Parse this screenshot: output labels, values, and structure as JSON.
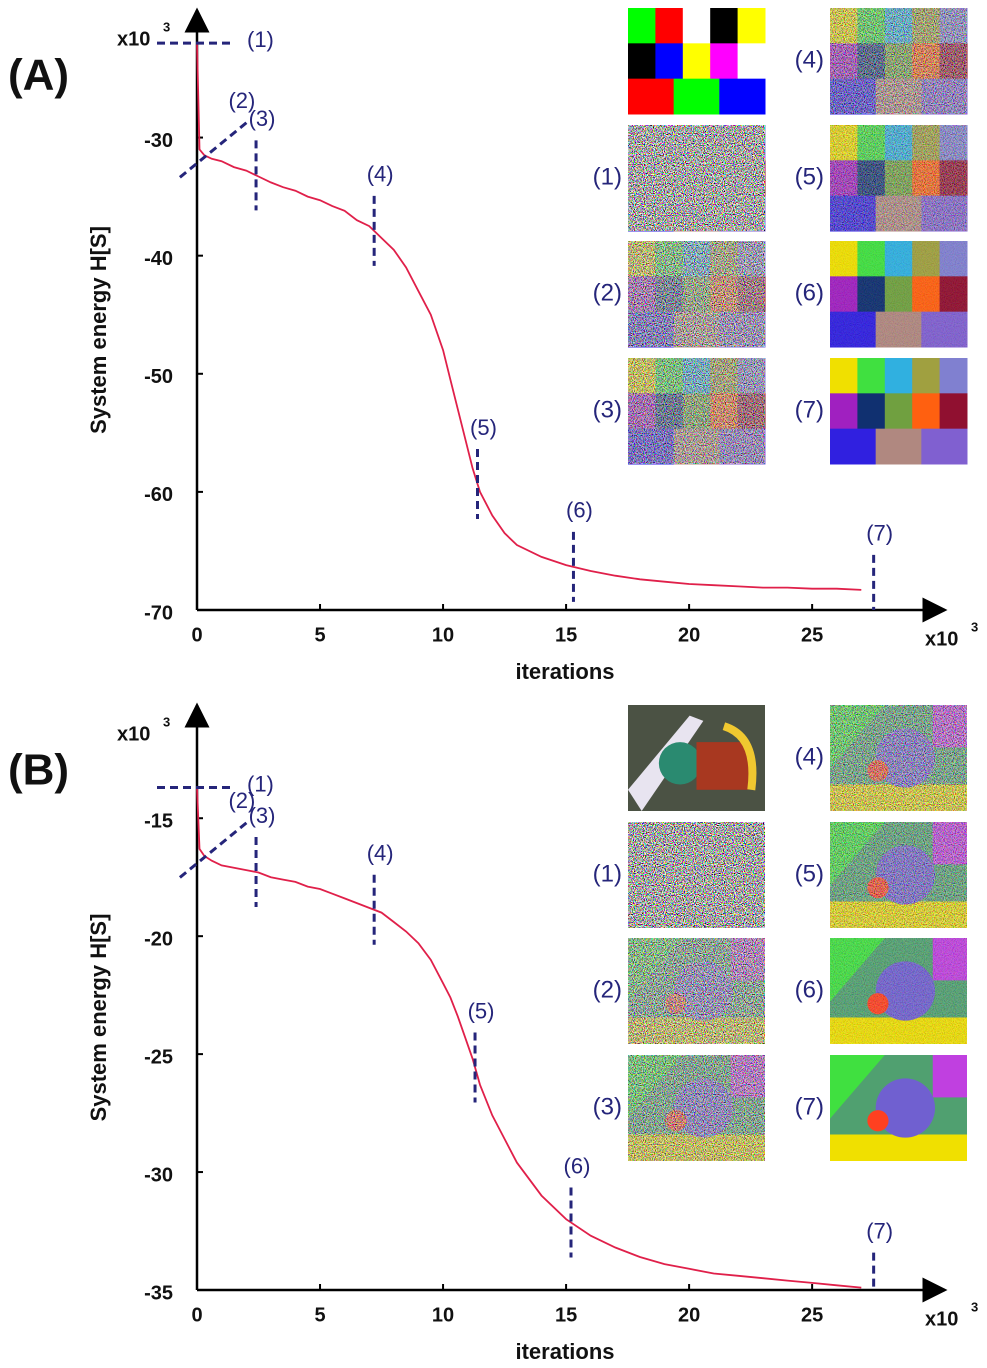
{
  "chart_data": [
    {
      "type": "line",
      "panel_label": "(A)",
      "x_label": "iterations",
      "y_label": "System energy H[S]",
      "x_multiplier": "x10",
      "x_multiplier_exp": "3",
      "y_multiplier": "x10",
      "y_multiplier_exp": "3",
      "x": [
        0,
        0.1,
        0.3,
        0.6,
        1,
        1.5,
        2,
        2.5,
        3,
        3.5,
        4,
        4.5,
        5,
        5.5,
        6,
        6.5,
        7,
        7.5,
        8,
        8.5,
        9,
        9.5,
        10,
        10.3,
        10.6,
        10.9,
        11.2,
        11.5,
        12,
        12.5,
        13,
        14,
        15,
        16,
        17,
        18,
        19,
        20,
        21,
        22,
        23,
        24,
        25,
        26,
        27
      ],
      "series": [
        {
          "color": "#e0204a",
          "values": [
            -22,
            -31,
            -31.5,
            -31.8,
            -32,
            -32.5,
            -32.8,
            -33.3,
            -33.8,
            -34.2,
            -34.5,
            -35,
            -35.3,
            -35.8,
            -36.2,
            -37,
            -37.5,
            -38.5,
            -39.5,
            -41,
            -43,
            -45,
            -48,
            -50.5,
            -53,
            -55.5,
            -58,
            -60,
            -62,
            -63.5,
            -64.5,
            -65.5,
            -66.2,
            -66.7,
            -67.1,
            -67.4,
            -67.6,
            -67.8,
            -67.9,
            -68,
            -68.1,
            -68.1,
            -68.2,
            -68.2,
            -68.3
          ]
        }
      ],
      "xlim": [
        0,
        30.4
      ],
      "ylim": [
        -70,
        -19.2
      ],
      "xticks": [
        0,
        5,
        10,
        15,
        20,
        25
      ],
      "yticks": [
        -70,
        -60,
        -50,
        -40,
        -30
      ],
      "annotations": [
        {
          "text": "(1)",
          "x": 0
        },
        {
          "text": "(2)",
          "x": 0.2
        },
        {
          "text": "(3)",
          "x": 2.4
        },
        {
          "text": "(4)",
          "x": 7.2
        },
        {
          "text": "(5)",
          "x": 11.4
        },
        {
          "text": "(6)",
          "x": 15.3
        },
        {
          "text": "(7)",
          "x": 27.5
        }
      ]
    },
    {
      "type": "line",
      "panel_label": "(B)",
      "x_label": "iterations",
      "y_label": "System energy H[S]",
      "x_multiplier": "x10",
      "x_multiplier_exp": "3",
      "y_multiplier": "x10",
      "y_multiplier_exp": "3",
      "x": [
        0,
        0.1,
        0.3,
        0.6,
        1,
        1.5,
        2,
        2.5,
        3,
        3.5,
        4,
        4.5,
        5,
        5.5,
        6,
        6.5,
        7,
        7.5,
        8,
        8.5,
        9,
        9.5,
        10,
        10.3,
        10.6,
        10.9,
        11.2,
        11.5,
        12,
        12.5,
        13,
        14,
        15,
        16,
        17,
        18,
        19,
        20,
        21,
        22,
        23,
        24,
        25,
        26,
        27
      ],
      "series": [
        {
          "color": "#e0204a",
          "values": [
            -13.7,
            -16.3,
            -16.6,
            -16.8,
            -17,
            -17.1,
            -17.2,
            -17.3,
            -17.5,
            -17.6,
            -17.7,
            -17.9,
            -18,
            -18.2,
            -18.4,
            -18.6,
            -18.8,
            -19,
            -19.4,
            -19.8,
            -20.3,
            -21,
            -22,
            -22.6,
            -23.4,
            -24.3,
            -25.2,
            -26.3,
            -27.6,
            -28.6,
            -29.6,
            -31,
            -32,
            -32.7,
            -33.2,
            -33.6,
            -33.9,
            -34.1,
            -34.3,
            -34.4,
            -34.5,
            -34.6,
            -34.7,
            -34.8,
            -34.9
          ]
        }
      ],
      "xlim": [
        0,
        30.4
      ],
      "ylim": [
        -35,
        -10.2
      ],
      "xticks": [
        0,
        5,
        10,
        15,
        20,
        25
      ],
      "yticks": [
        -35,
        -30,
        -25,
        -20,
        -15
      ],
      "annotations": [
        {
          "text": "(1)",
          "x": 0
        },
        {
          "text": "(2)",
          "x": 0.2
        },
        {
          "text": "(3)",
          "x": 2.4
        },
        {
          "text": "(4)",
          "x": 7.2
        },
        {
          "text": "(5)",
          "x": 11.3
        },
        {
          "text": "(6)",
          "x": 15.2
        },
        {
          "text": "(7)",
          "x": 27.5
        }
      ]
    }
  ]
}
